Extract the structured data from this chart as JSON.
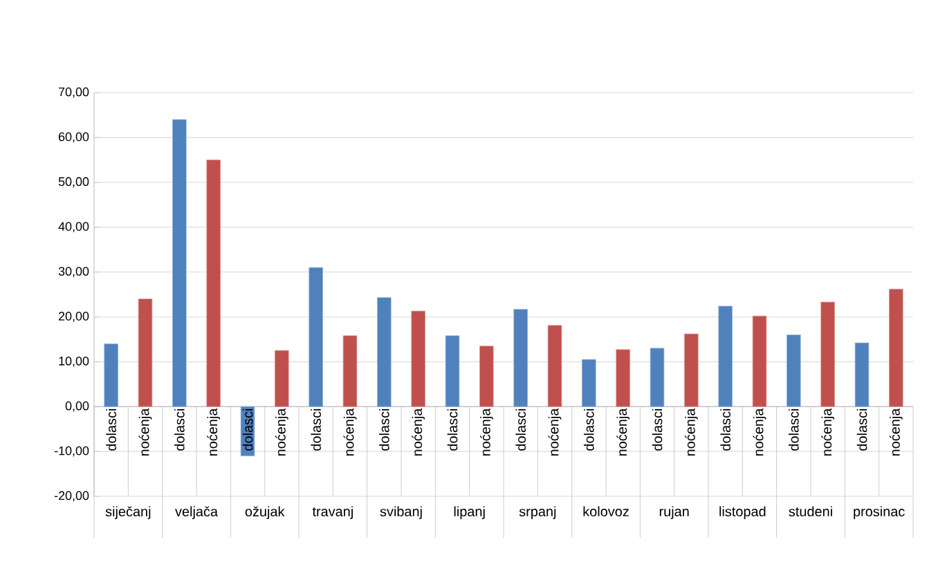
{
  "chart_data": {
    "type": "bar",
    "categories": [
      "siječanj",
      "veljača",
      "ožujak",
      "travanj",
      "svibanj",
      "lipanj",
      "srpanj",
      "kolovoz",
      "rujan",
      "listopad",
      "studeni",
      "prosinac"
    ],
    "series": [
      {
        "name": "dolasci",
        "color": "#4f81bd",
        "values": [
          14,
          64,
          -11,
          31,
          24.3,
          15.8,
          21.7,
          10.5,
          13,
          22.4,
          16,
          14.2
        ]
      },
      {
        "name": "noćenja",
        "color": "#c0504d",
        "values": [
          24,
          55,
          12.5,
          15.8,
          21.3,
          13.5,
          18.1,
          12.7,
          16.2,
          20.2,
          23.3,
          26.2
        ]
      }
    ],
    "ylim": [
      -20,
      70
    ],
    "yticks": [
      {
        "value": -20,
        "label": "-20,00"
      },
      {
        "value": -10,
        "label": "-10,00"
      },
      {
        "value": 0,
        "label": "0,00"
      },
      {
        "value": 10,
        "label": "10,00"
      },
      {
        "value": 20,
        "label": "20,00"
      },
      {
        "value": 30,
        "label": "30,00"
      },
      {
        "value": 40,
        "label": "40,00"
      },
      {
        "value": 50,
        "label": "50,00"
      },
      {
        "value": 60,
        "label": "60,00"
      },
      {
        "value": 70,
        "label": "70,00"
      }
    ],
    "grid": "y",
    "legend": false
  }
}
